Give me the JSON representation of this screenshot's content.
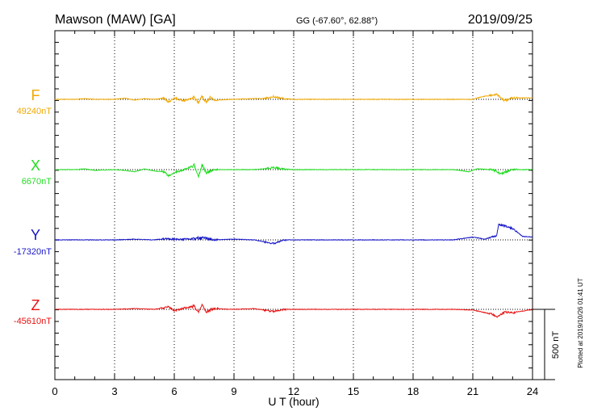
{
  "header": {
    "station": "Mawson (MAW)  [GA]",
    "coords": "GG (-67.60°,  62.88°)",
    "date": "2019/09/25"
  },
  "side_note": "Plotted at 2019/10/26 01:41 UT",
  "scale_bar_label": "500 nT",
  "colors": {
    "F": "#f0a800",
    "X": "#22dd22",
    "Y": "#1515c8",
    "Z": "#e81010"
  },
  "chart_data": {
    "type": "line",
    "xlabel": "U T (hour)",
    "xlim": [
      0,
      24
    ],
    "x_ticks": [
      0,
      3,
      6,
      9,
      12,
      15,
      18,
      21,
      24
    ],
    "x_tick_labels": [
      "0",
      "3",
      "6",
      "9",
      "12",
      "15",
      "18",
      "21",
      "24"
    ],
    "grid": "dotted vertical at each 3 hours; dotted horizontal baseline per component",
    "scale_nT": 500,
    "series": [
      {
        "name": "F",
        "baseline_label": "49240nT",
        "color": "#f0a800",
        "points": [
          [
            0,
            0
          ],
          [
            1,
            0
          ],
          [
            1.5,
            5
          ],
          [
            2,
            0
          ],
          [
            3,
            0
          ],
          [
            3.5,
            8
          ],
          [
            4,
            -5
          ],
          [
            4.5,
            5
          ],
          [
            5,
            0
          ],
          [
            5.5,
            8
          ],
          [
            5.7,
            -20
          ],
          [
            6,
            10
          ],
          [
            6.5,
            -10
          ],
          [
            7,
            15
          ],
          [
            7.2,
            -28
          ],
          [
            7.4,
            20
          ],
          [
            7.6,
            -20
          ],
          [
            7.8,
            15
          ],
          [
            8,
            -5
          ],
          [
            9,
            0
          ],
          [
            10,
            5
          ],
          [
            10.5,
            5
          ],
          [
            11,
            20
          ],
          [
            11.5,
            5
          ],
          [
            12,
            0
          ],
          [
            14,
            0
          ],
          [
            15,
            0
          ],
          [
            18,
            0
          ],
          [
            20,
            0
          ],
          [
            21,
            0
          ],
          [
            21.5,
            20
          ],
          [
            22,
            30
          ],
          [
            22.2,
            35
          ],
          [
            22.6,
            -10
          ],
          [
            23,
            10
          ],
          [
            24,
            10
          ]
        ]
      },
      {
        "name": "X",
        "baseline_label": "6670nT",
        "color": "#22dd22",
        "points": [
          [
            0,
            0
          ],
          [
            1,
            0
          ],
          [
            1.5,
            5
          ],
          [
            2,
            -5
          ],
          [
            3,
            0
          ],
          [
            3.5,
            -5
          ],
          [
            4,
            -15
          ],
          [
            4.5,
            5
          ],
          [
            5,
            -10
          ],
          [
            5.5,
            -15
          ],
          [
            5.7,
            -45
          ],
          [
            6,
            -20
          ],
          [
            6.5,
            0
          ],
          [
            7,
            30
          ],
          [
            7.2,
            -55
          ],
          [
            7.4,
            30
          ],
          [
            7.6,
            -20
          ],
          [
            8,
            0
          ],
          [
            9,
            0
          ],
          [
            10,
            0
          ],
          [
            10.5,
            5
          ],
          [
            11,
            15
          ],
          [
            11.5,
            5
          ],
          [
            12,
            0
          ],
          [
            15,
            0
          ],
          [
            18,
            0
          ],
          [
            20,
            0
          ],
          [
            20.8,
            -15
          ],
          [
            21.2,
            5
          ],
          [
            22,
            0
          ],
          [
            22.4,
            -30
          ],
          [
            22.6,
            -20
          ],
          [
            23,
            0
          ],
          [
            24,
            0
          ]
        ]
      },
      {
        "name": "Y",
        "baseline_label": "-17320nT",
        "color": "#1515c8",
        "points": [
          [
            0,
            0
          ],
          [
            1,
            0
          ],
          [
            2,
            0
          ],
          [
            3,
            0
          ],
          [
            4,
            5
          ],
          [
            5,
            0
          ],
          [
            5.5,
            10
          ],
          [
            6,
            5
          ],
          [
            6.5,
            5
          ],
          [
            7,
            10
          ],
          [
            7.5,
            15
          ],
          [
            8,
            0
          ],
          [
            9,
            5
          ],
          [
            10,
            0
          ],
          [
            11,
            -25
          ],
          [
            11.5,
            0
          ],
          [
            12,
            0
          ],
          [
            15,
            0
          ],
          [
            18,
            0
          ],
          [
            20,
            0
          ],
          [
            21,
            20
          ],
          [
            21.6,
            5
          ],
          [
            22.2,
            30
          ],
          [
            22.3,
            110
          ],
          [
            22.6,
            100
          ],
          [
            23,
            80
          ],
          [
            23.5,
            25
          ],
          [
            24,
            20
          ]
        ]
      },
      {
        "name": "Z",
        "baseline_label": "-45610nT",
        "color": "#e81010",
        "points": [
          [
            0,
            0
          ],
          [
            1,
            0
          ],
          [
            2,
            0
          ],
          [
            3,
            0
          ],
          [
            4,
            5
          ],
          [
            5,
            0
          ],
          [
            5.5,
            10
          ],
          [
            5.7,
            20
          ],
          [
            6,
            -10
          ],
          [
            6.5,
            10
          ],
          [
            7,
            20
          ],
          [
            7.2,
            -25
          ],
          [
            7.4,
            25
          ],
          [
            7.6,
            -15
          ],
          [
            8,
            5
          ],
          [
            9,
            0
          ],
          [
            10,
            5
          ],
          [
            11,
            -15
          ],
          [
            11.5,
            0
          ],
          [
            12,
            0
          ],
          [
            15,
            0
          ],
          [
            18,
            0
          ],
          [
            20,
            0
          ],
          [
            21,
            -5
          ],
          [
            21.5,
            -20
          ],
          [
            22,
            -35
          ],
          [
            22.2,
            -55
          ],
          [
            22.6,
            -20
          ],
          [
            23,
            -25
          ],
          [
            24,
            0
          ]
        ]
      }
    ]
  }
}
